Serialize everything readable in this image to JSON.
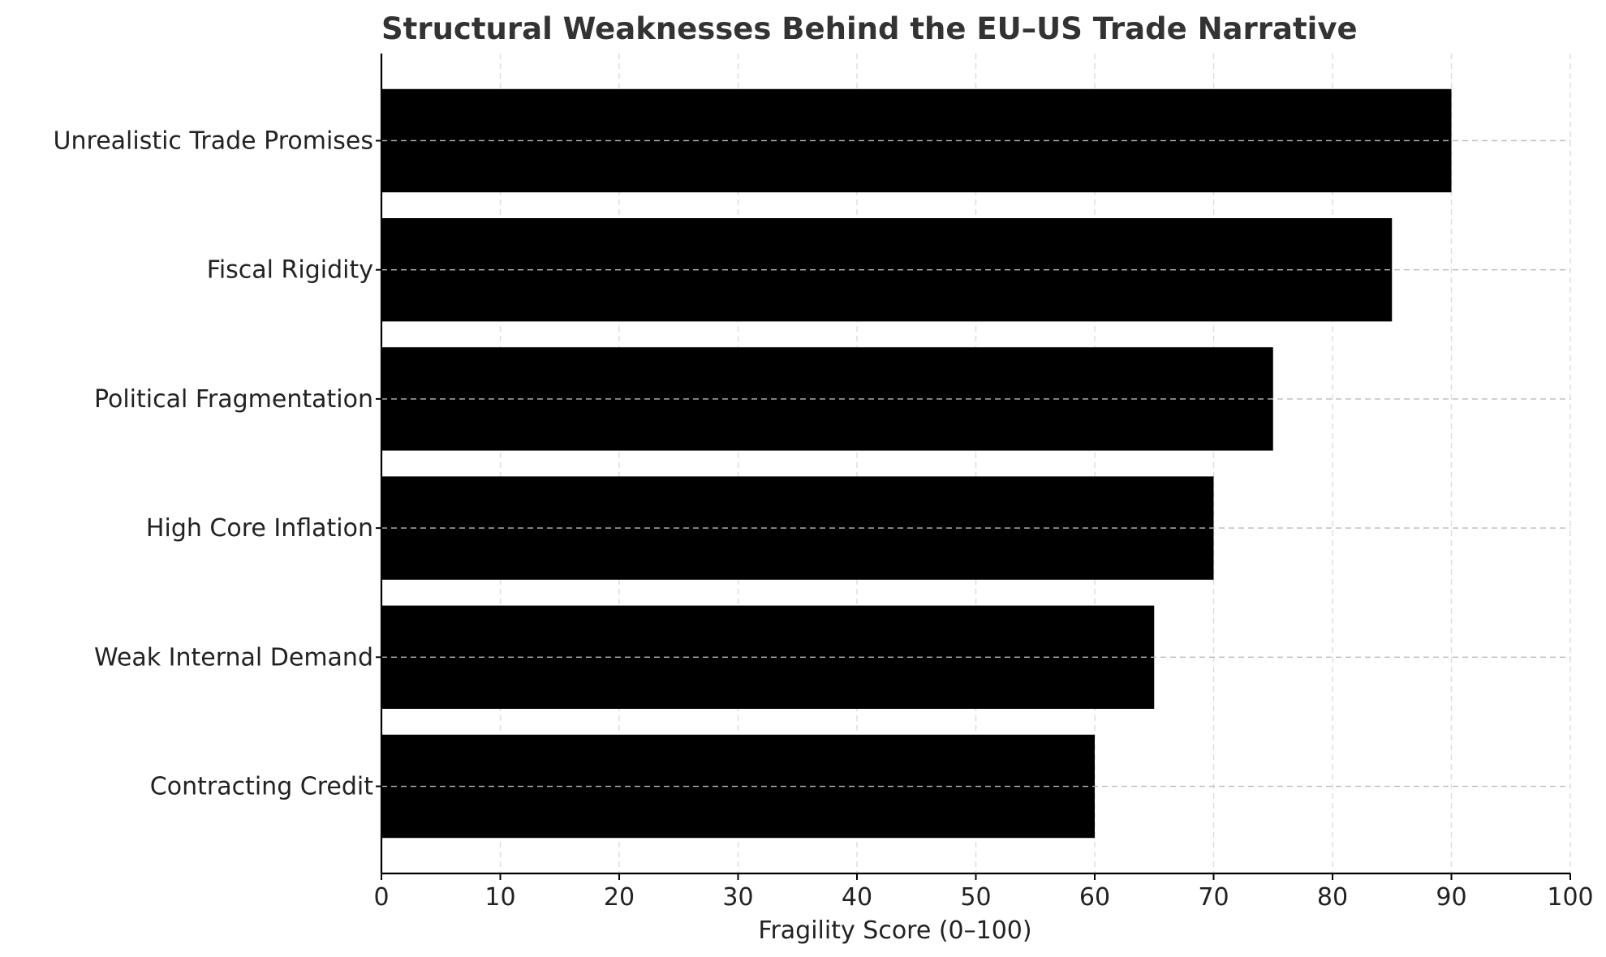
{
  "chart_data": {
    "type": "bar",
    "orientation": "horizontal",
    "title": "Structural Weaknesses Behind the EU–US Trade Narrative",
    "xlabel": "Fragility Score (0–100)",
    "ylabel": "",
    "categories": [
      "Unrealistic Trade Promises",
      "Fiscal Rigidity",
      "Political Fragmentation",
      "High Core Inflation",
      "Weak Internal Demand",
      "Contracting Credit"
    ],
    "values": [
      90,
      85,
      75,
      70,
      65,
      60
    ],
    "xlim": [
      0,
      100
    ],
    "xticks": [
      "0",
      "10",
      "20",
      "30",
      "40",
      "50",
      "60",
      "70",
      "80",
      "90",
      "100"
    ],
    "grid": true,
    "legend": "none",
    "bar_color": "#000000",
    "grid_color": "#cccccc"
  }
}
